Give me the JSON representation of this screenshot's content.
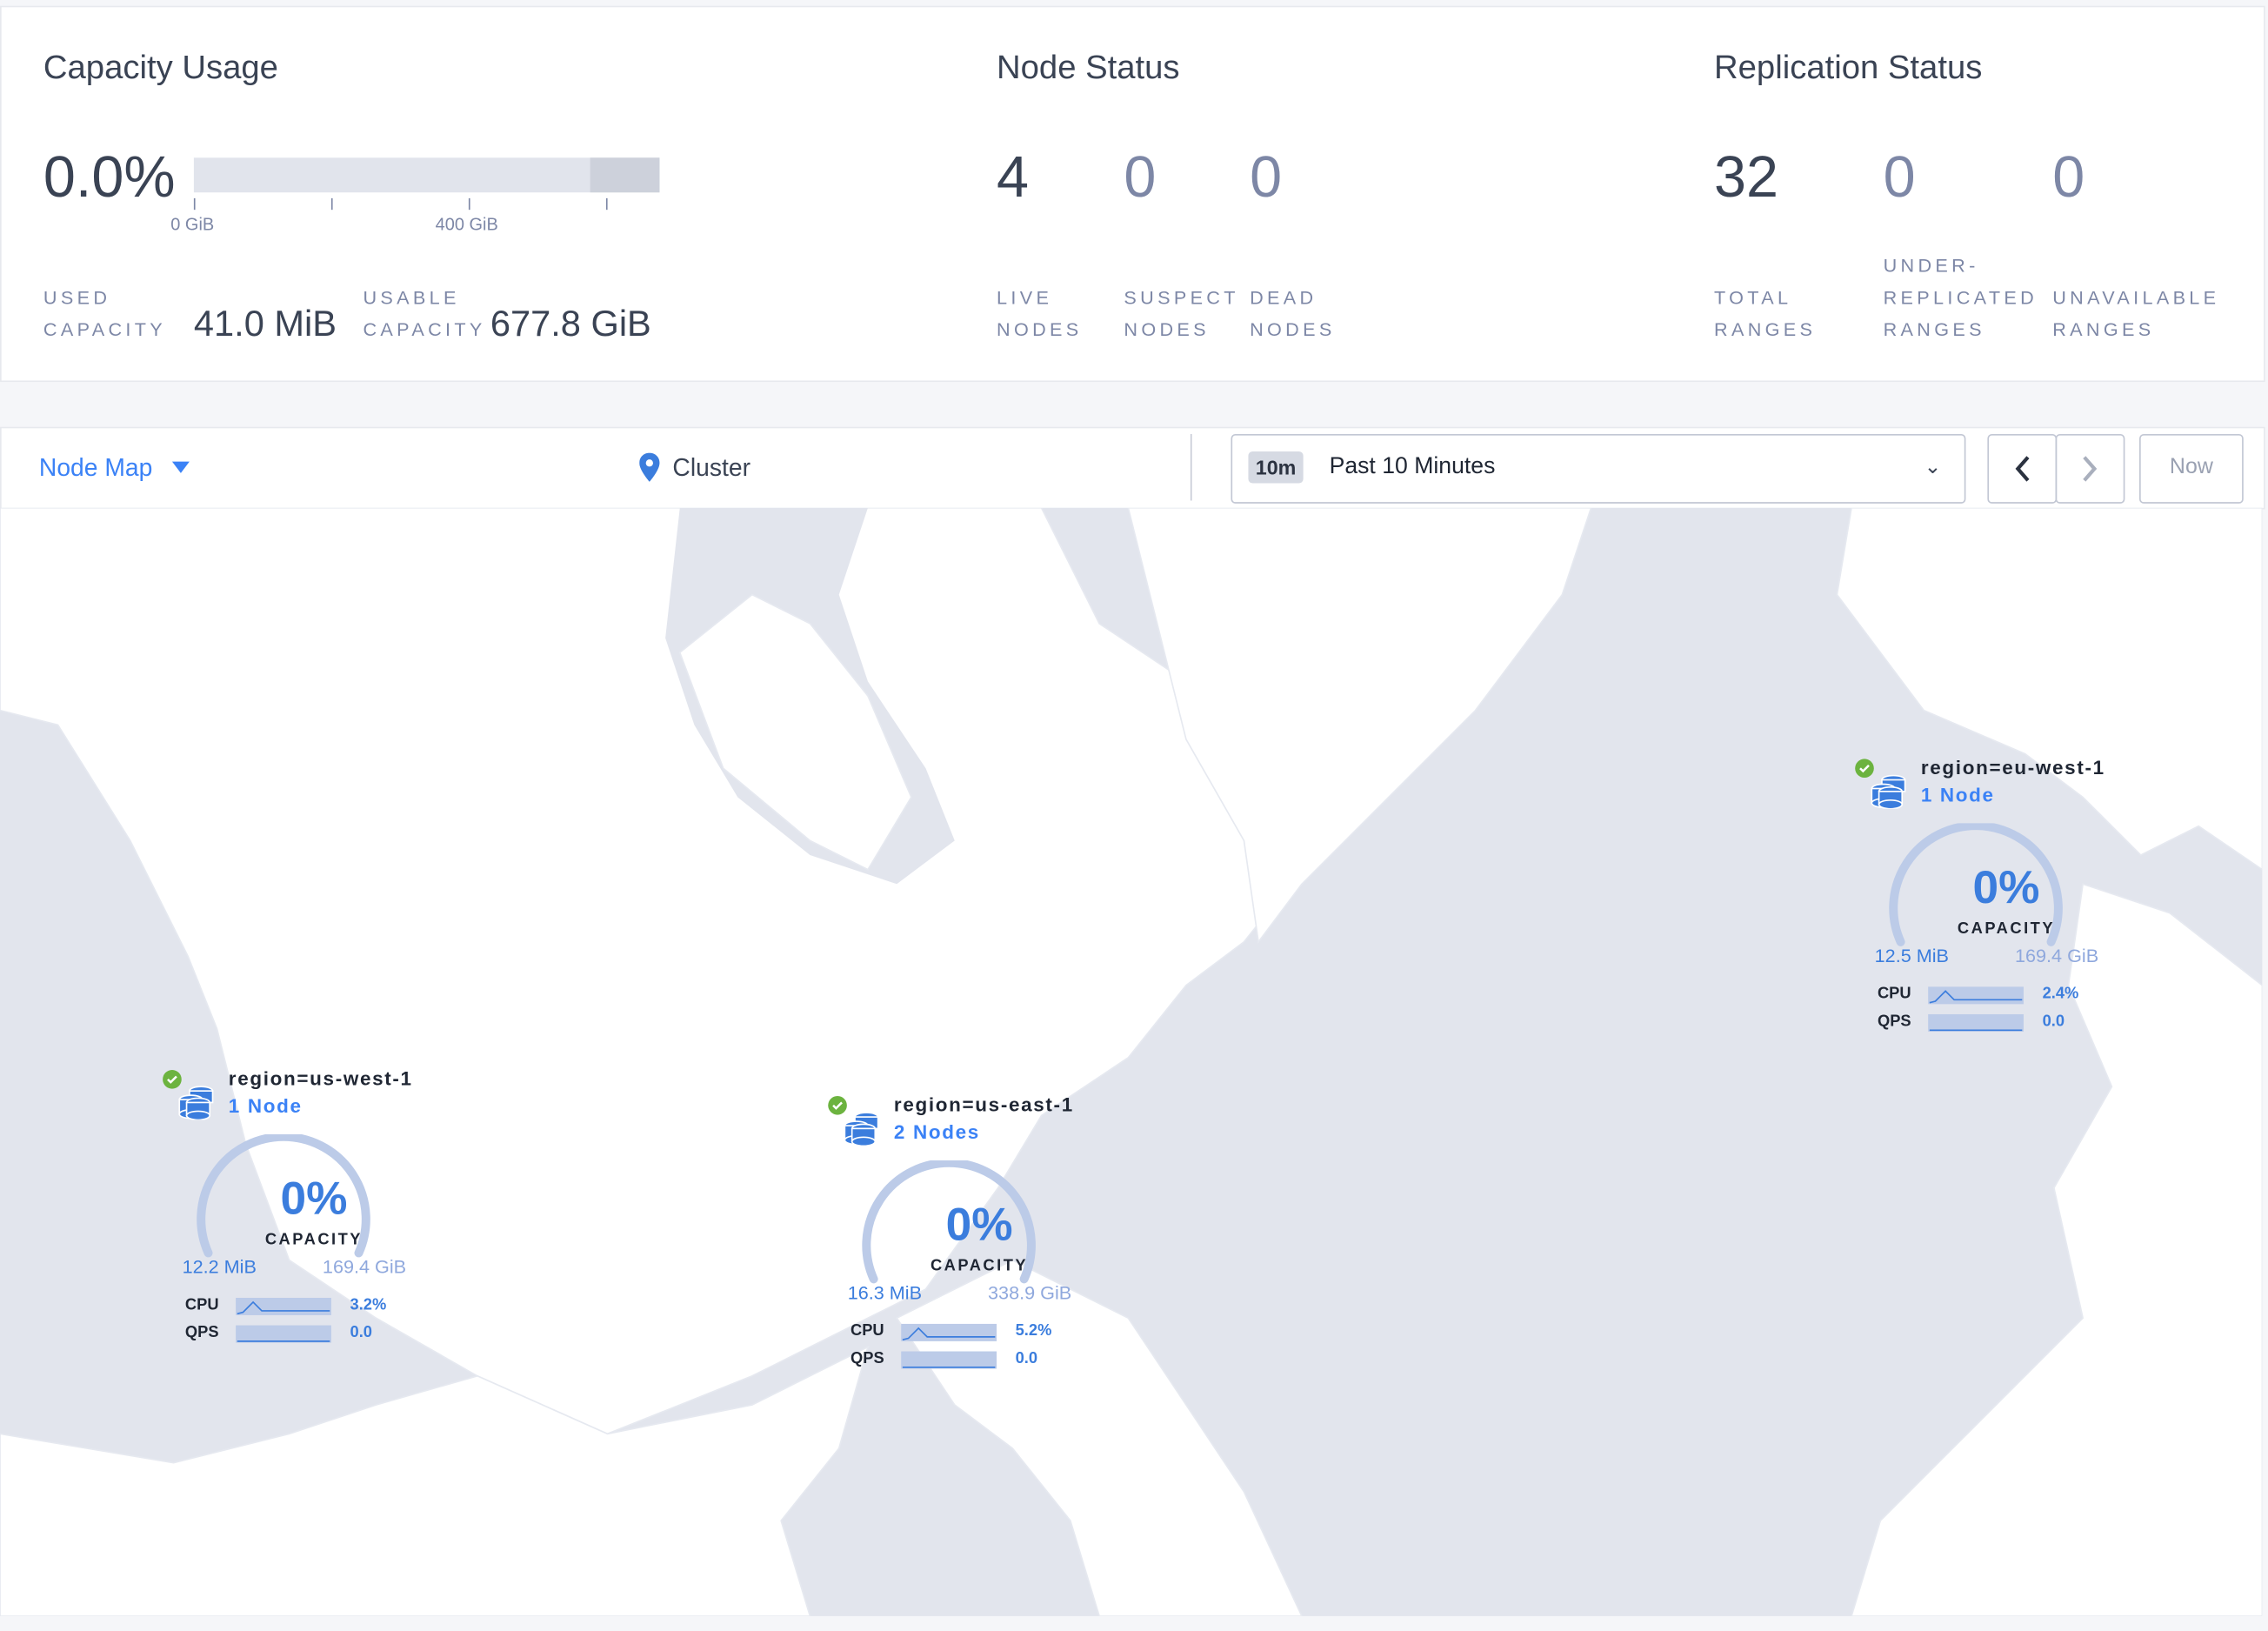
{
  "capacity": {
    "title": "Capacity Usage",
    "percent": "0.0%",
    "fraction_used": 0.0,
    "ticks": [
      "0 GiB",
      "400 GiB"
    ],
    "used_label_1": "USED",
    "used_label_2": "CAPACITY",
    "used_value": "41.0 MiB",
    "usable_label_1": "USABLE",
    "usable_label_2": "CAPACITY",
    "usable_value": "677.8 GiB"
  },
  "node_status": {
    "title": "Node Status",
    "live": "4",
    "suspect": "0",
    "dead": "0",
    "live_l1": "LIVE",
    "live_l2": "NODES",
    "suspect_l1": "SUSPECT",
    "suspect_l2": "NODES",
    "dead_l1": "DEAD",
    "dead_l2": "NODES"
  },
  "replication": {
    "title": "Replication Status",
    "total": "32",
    "under": "0",
    "unavailable": "0",
    "total_l1": "TOTAL",
    "total_l2": "RANGES",
    "under_l0": "UNDER-",
    "under_l1": "REPLICATED",
    "under_l2": "RANGES",
    "unavail_l1": "UNAVAILABLE",
    "unavail_l2": "RANGES"
  },
  "toolbar": {
    "view": "Node Map",
    "breadcrumb": "Cluster",
    "time_chip": "10m",
    "time_range": "Past 10 Minutes",
    "now": "Now"
  },
  "colors": {
    "accent": "#3b82f6",
    "healthy": "#6cb33f",
    "ocean": "#e2e5ed",
    "land": "#ffffff"
  },
  "regions": [
    {
      "name": "region=us-west-1",
      "nodes": "1 Node",
      "capacity_pct": "0%",
      "capacity_label": "CAPACITY",
      "used": "12.2 MiB",
      "total": "169.4 GiB",
      "cpu_label": "CPU",
      "cpu": "3.2%",
      "qps_label": "QPS",
      "qps": "0.0",
      "status": "healthy"
    },
    {
      "name": "region=us-east-1",
      "nodes": "2 Nodes",
      "capacity_pct": "0%",
      "capacity_label": "CAPACITY",
      "used": "16.3 MiB",
      "total": "338.9 GiB",
      "cpu_label": "CPU",
      "cpu": "5.2%",
      "qps_label": "QPS",
      "qps": "0.0",
      "status": "healthy"
    },
    {
      "name": "region=eu-west-1",
      "nodes": "1 Node",
      "capacity_pct": "0%",
      "capacity_label": "CAPACITY",
      "used": "12.5 MiB",
      "total": "169.4 GiB",
      "cpu_label": "CPU",
      "cpu": "2.4%",
      "qps_label": "QPS",
      "qps": "0.0",
      "status": "healthy"
    }
  ]
}
